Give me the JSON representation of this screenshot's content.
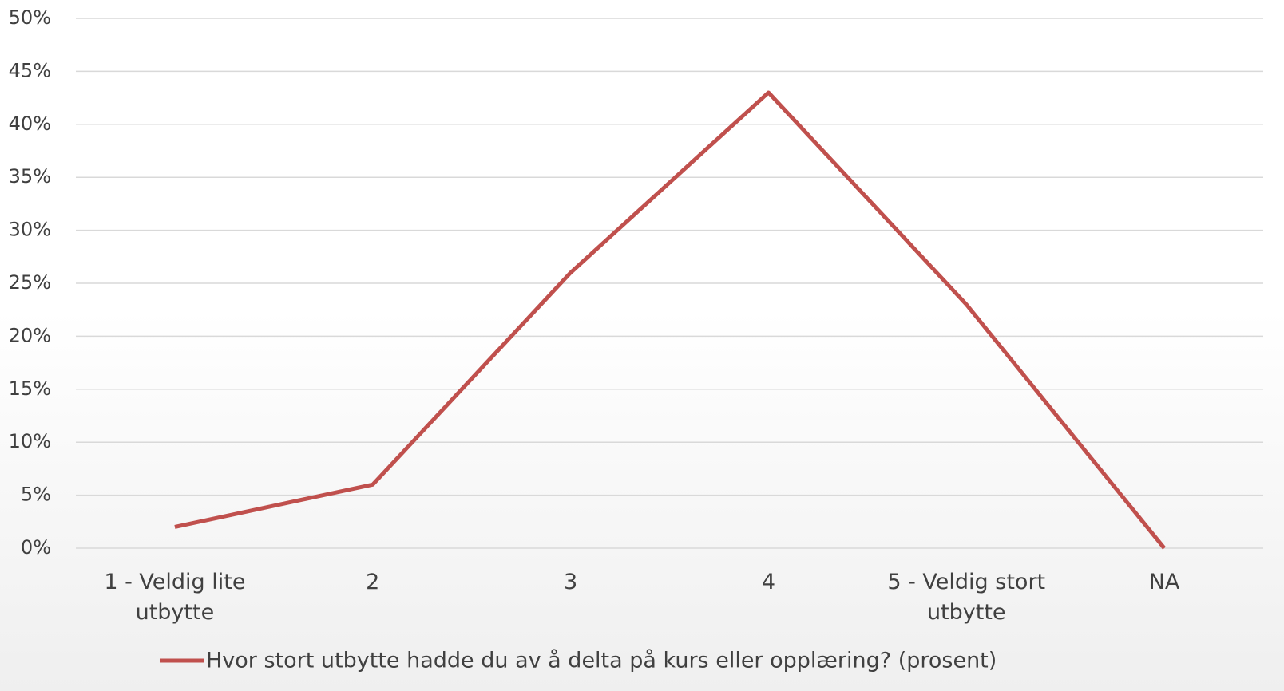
{
  "chart_data": {
    "type": "line",
    "categories": [
      "1 - Veldig lite utbytte",
      "2",
      "3",
      "4",
      "5 - Veldig stort utbytte",
      "NA"
    ],
    "series": [
      {
        "name": "Hvor stort utbytte hadde du av å delta på kurs eller opplæring? (prosent)",
        "color": "#c0504d",
        "values": [
          2,
          6,
          26,
          43,
          23,
          0
        ]
      }
    ],
    "ylim": [
      0,
      50
    ],
    "yticks": [
      {
        "value": 0,
        "label": "0%"
      },
      {
        "value": 5,
        "label": "5%"
      },
      {
        "value": 10,
        "label": "10%"
      },
      {
        "value": 15,
        "label": "15%"
      },
      {
        "value": 20,
        "label": "20%"
      },
      {
        "value": 25,
        "label": "25%"
      },
      {
        "value": 30,
        "label": "30%"
      },
      {
        "value": 35,
        "label": "35%"
      },
      {
        "value": 40,
        "label": "40%"
      },
      {
        "value": 45,
        "label": "45%"
      },
      {
        "value": 50,
        "label": "50%"
      }
    ],
    "grid": true,
    "legend": "bottom"
  }
}
